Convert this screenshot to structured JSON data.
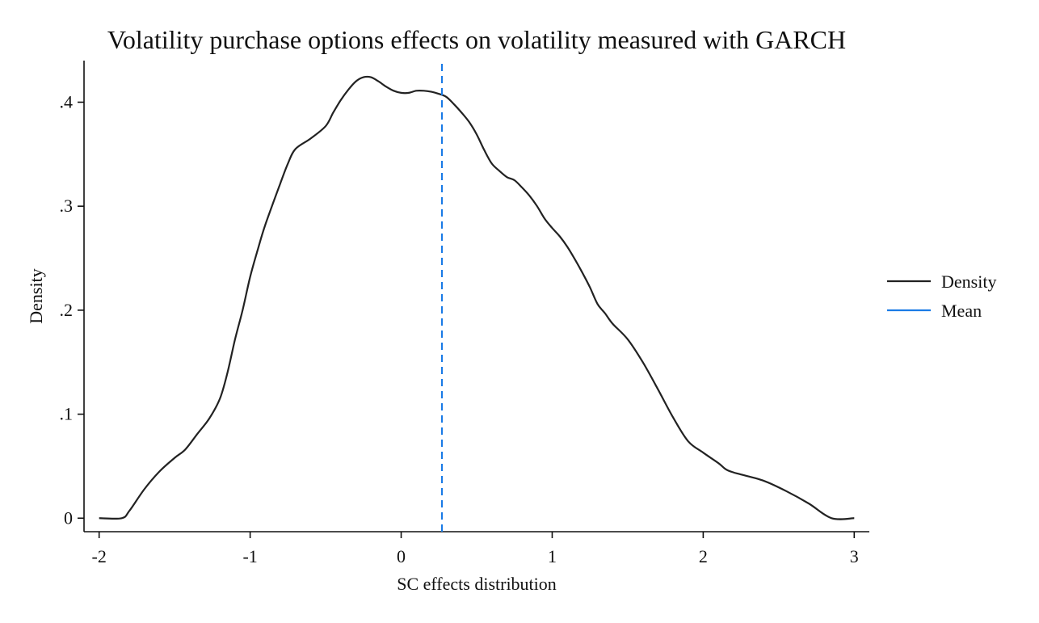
{
  "chart_data": {
    "type": "line",
    "title": "Volatility purchase options effects on volatility measured with GARCH",
    "xlabel": "SC effects distribution",
    "ylabel": "Density",
    "xlim": [
      -2.1,
      3.1
    ],
    "ylim": [
      -0.013,
      0.44
    ],
    "x_ticks": [
      -2,
      -1,
      0,
      1,
      2,
      3
    ],
    "x_tick_labels": [
      "-2",
      "-1",
      "0",
      "1",
      "2",
      "3"
    ],
    "y_ticks": [
      0,
      0.1,
      0.2,
      0.3,
      0.4
    ],
    "y_tick_labels": [
      "0",
      ".1",
      ".2",
      ".3",
      ".4"
    ],
    "grid": false,
    "legend_position": "right",
    "series": [
      {
        "name": "Density",
        "color": "#222222",
        "style": "solid",
        "x": [
          -2.0,
          -1.85,
          -1.8,
          -1.7,
          -1.6,
          -1.5,
          -1.43,
          -1.35,
          -1.27,
          -1.2,
          -1.15,
          -1.1,
          -1.05,
          -1.0,
          -0.95,
          -0.9,
          -0.8,
          -0.75,
          -0.7,
          -0.6,
          -0.5,
          -0.45,
          -0.4,
          -0.35,
          -0.3,
          -0.25,
          -0.2,
          -0.15,
          -0.1,
          -0.05,
          0.0,
          0.05,
          0.1,
          0.15,
          0.2,
          0.25,
          0.3,
          0.35,
          0.4,
          0.45,
          0.5,
          0.55,
          0.6,
          0.65,
          0.7,
          0.75,
          0.8,
          0.85,
          0.9,
          0.95,
          1.0,
          1.05,
          1.1,
          1.15,
          1.2,
          1.25,
          1.3,
          1.35,
          1.4,
          1.5,
          1.6,
          1.7,
          1.8,
          1.9,
          2.0,
          2.1,
          2.15,
          2.2,
          2.25,
          2.4,
          2.55,
          2.7,
          2.85,
          3.0
        ],
        "y": [
          0.0,
          0.0,
          0.007,
          0.028,
          0.045,
          0.058,
          0.066,
          0.081,
          0.096,
          0.115,
          0.14,
          0.172,
          0.2,
          0.232,
          0.258,
          0.282,
          0.322,
          0.341,
          0.355,
          0.365,
          0.377,
          0.39,
          0.402,
          0.412,
          0.42,
          0.424,
          0.424,
          0.42,
          0.415,
          0.411,
          0.409,
          0.409,
          0.411,
          0.411,
          0.41,
          0.408,
          0.405,
          0.398,
          0.39,
          0.381,
          0.369,
          0.354,
          0.341,
          0.334,
          0.328,
          0.325,
          0.318,
          0.31,
          0.3,
          0.288,
          0.279,
          0.271,
          0.261,
          0.249,
          0.236,
          0.222,
          0.206,
          0.197,
          0.187,
          0.172,
          0.15,
          0.124,
          0.097,
          0.074,
          0.063,
          0.053,
          0.047,
          0.044,
          0.042,
          0.036,
          0.026,
          0.014,
          0.0,
          0.0
        ]
      },
      {
        "name": "Mean",
        "color": "#1a7be6",
        "style": "dashed",
        "x": [
          0.27,
          0.27
        ],
        "y": [
          -0.013,
          0.44
        ]
      }
    ]
  }
}
